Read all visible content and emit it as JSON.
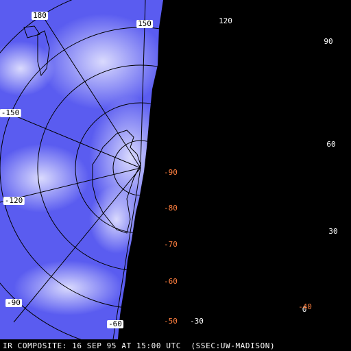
{
  "longitude_labels": [
    "180",
    "150",
    "120",
    "90",
    "60",
    "30",
    "0",
    "-30",
    "-60",
    "-90",
    "-120",
    "-150"
  ],
  "latitude_labels": [
    "-90",
    "-80",
    "-70",
    "-60",
    "-50",
    "-40"
  ],
  "caption": "IR COMPOSITE: 16 SEP 95 AT 15:00 UTC  (SSEC:UW-MADISON)"
}
